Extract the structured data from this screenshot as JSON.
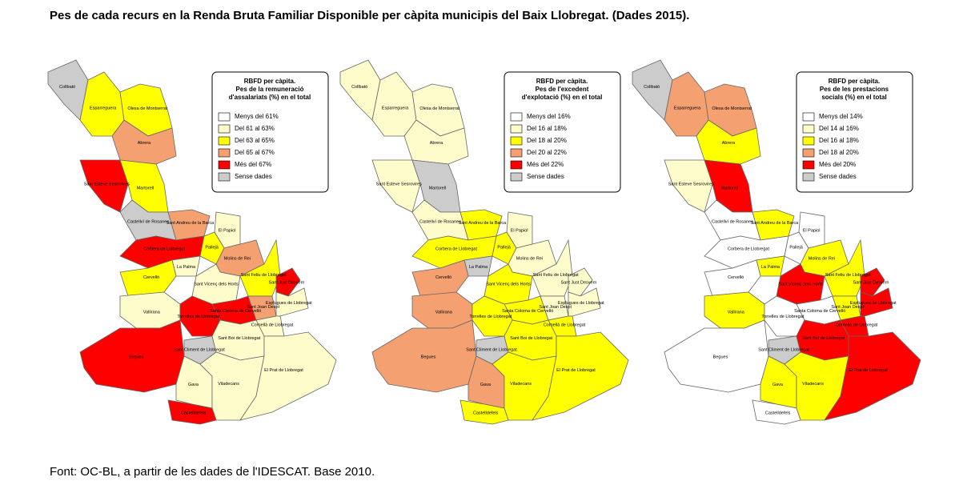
{
  "title": "Pes de cada recurs en la  Renda Bruta Familiar Disponible per càpita municipis del Baix Llobregat. (Dades 2015).",
  "source": "Font: OC-BL, a partir de les dades de l'IDESCAT. Base 2010.",
  "municipalities": [
    "Collbató",
    "Esparreguera",
    "Olesa de Montserrat",
    "Abrera",
    "Sant Esteve Sesrovires",
    "Martorell",
    "Castellví de Rosanes",
    "Sant Andreu de la Barca",
    "El Papiol",
    "Corbera de Llobregat",
    "Pallejà",
    "La Palma",
    "Molins de Rei",
    "Cervelló",
    "Sant Vicenç dels Horts",
    "Sant Feliu de Llobregat",
    "Sant Just Desvern",
    "Vallirana",
    "Santa Coloma de Cervelló",
    "Sant Joan Despí",
    "Esplugues de Llobregat",
    "Cornellà de Llobregat",
    "Torrelles de Llobregat",
    "Sant Climent de Llobregat",
    "Sant Boi de Llobregat",
    "Begues",
    "Gava",
    "Viladecans",
    "El Prat de Llobregat",
    "Castelldefels"
  ],
  "maps": [
    {
      "legend_title": [
        "RBFD per càpita.",
        "Pes de la remuneració",
        "d'assalariats (%) en el total"
      ],
      "legend": [
        {
          "label": "Menys del 61%",
          "color": "#ffffff"
        },
        {
          "label": "Del 61 al 63%",
          "color": "#fffccc"
        },
        {
          "label": "Del 63 al 65%",
          "color": "#ffff00"
        },
        {
          "label": "Del 65 al 67%",
          "color": "#f4a071"
        },
        {
          "label": "Més del 67%",
          "color": "#ff0000"
        },
        {
          "label": "Sense dades",
          "color": "#cccccc"
        }
      ],
      "classes": [
        5,
        2,
        2,
        3,
        4,
        2,
        5,
        3,
        1,
        4,
        2,
        1,
        3,
        2,
        1,
        2,
        4,
        1,
        4,
        3,
        1,
        1,
        4,
        5,
        1,
        4,
        1,
        1,
        1,
        4
      ]
    },
    {
      "legend_title": [
        "RBFD per càpita.",
        "Pes de l'excedent",
        "d'explotació (%) en el total"
      ],
      "legend": [
        {
          "label": "Menys del 16%",
          "color": "#ffffff"
        },
        {
          "label": "Del 16 al 18%",
          "color": "#fffccc"
        },
        {
          "label": "Del 18 al 20%",
          "color": "#ffff00"
        },
        {
          "label": "Del 20 al 22%",
          "color": "#f4a071"
        },
        {
          "label": "Més del 22%",
          "color": "#ff0000"
        },
        {
          "label": "Sense dades",
          "color": "#cccccc"
        }
      ],
      "classes": [
        1,
        1,
        1,
        1,
        1,
        5,
        1,
        2,
        1,
        2,
        2,
        5,
        1,
        3,
        2,
        1,
        1,
        3,
        2,
        1,
        1,
        2,
        2,
        5,
        2,
        3,
        3,
        2,
        2,
        2
      ]
    },
    {
      "legend_title": [
        "RBFD per càpita.",
        "Pes de les prestacions",
        "socials (%) en el total"
      ],
      "legend": [
        {
          "label": "Menys del 14%",
          "color": "#ffffff"
        },
        {
          "label": "Del 14 al 16%",
          "color": "#fffccc"
        },
        {
          "label": "Del 16 al 18%",
          "color": "#ffff00"
        },
        {
          "label": "Del 18 al 20%",
          "color": "#f4a071"
        },
        {
          "label": "Més del 20%",
          "color": "#ff0000"
        },
        {
          "label": "Sense dades",
          "color": "#cccccc"
        }
      ],
      "classes": [
        5,
        3,
        3,
        2,
        1,
        4,
        0,
        2,
        0,
        0,
        0,
        2,
        2,
        0,
        4,
        2,
        4,
        2,
        0,
        2,
        4,
        4,
        0,
        5,
        4,
        0,
        2,
        2,
        4,
        0
      ]
    }
  ]
}
